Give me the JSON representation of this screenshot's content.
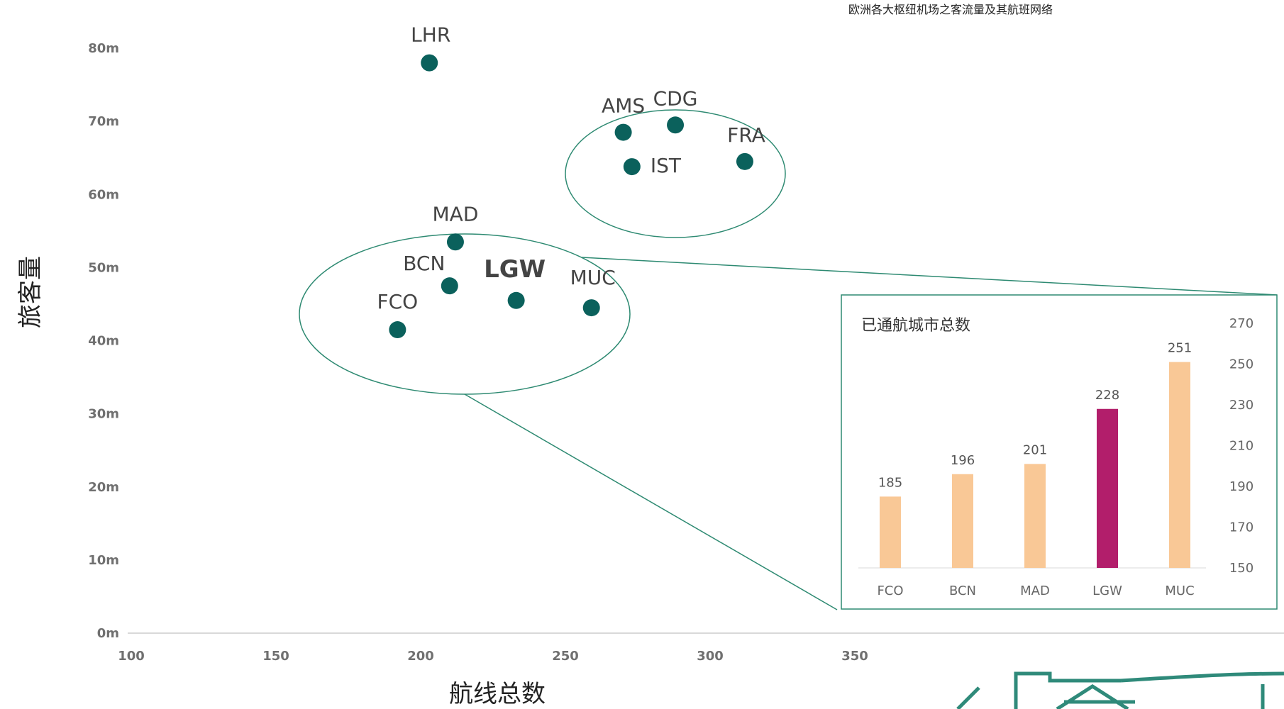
{
  "chart_data": [
    {
      "type": "scatter",
      "title": "欧洲各大枢纽机场之客流量及其航班网络",
      "xlabel": "航线总数",
      "ylabel": "旅客量",
      "xlim": [
        100,
        350
      ],
      "ylim": [
        0,
        80
      ],
      "x_ticks": [
        "100",
        "150",
        "200",
        "250",
        "300",
        "350"
      ],
      "y_ticks": [
        "0m",
        "10m",
        "20m",
        "30m",
        "40m",
        "50m",
        "60m",
        "70m",
        "80m"
      ],
      "point_color": "#0b615c",
      "points": [
        {
          "label": "LHR",
          "x": 203,
          "y": 78,
          "bold": false
        },
        {
          "label": "AMS",
          "x": 270,
          "y": 68.5,
          "bold": false
        },
        {
          "label": "CDG",
          "x": 288,
          "y": 69.5,
          "bold": false
        },
        {
          "label": "FRA",
          "x": 312,
          "y": 64.5,
          "bold": false
        },
        {
          "label": "IST",
          "x": 273,
          "y": 63.8,
          "bold": false
        },
        {
          "label": "MAD",
          "x": 212,
          "y": 53.5,
          "bold": false
        },
        {
          "label": "BCN",
          "x": 210,
          "y": 47.5,
          "bold": false
        },
        {
          "label": "LGW",
          "x": 233,
          "y": 45.5,
          "bold": true
        },
        {
          "label": "MUC",
          "x": 259,
          "y": 44.5,
          "bold": false
        },
        {
          "label": "FCO",
          "x": 192,
          "y": 41.5,
          "bold": false
        }
      ]
    },
    {
      "type": "bar",
      "title": "已通航城市总数",
      "categories": [
        "FCO",
        "BCN",
        "MAD",
        "LGW",
        "MUC"
      ],
      "values": [
        185,
        196,
        201,
        228,
        251
      ],
      "ylim": [
        150,
        270
      ],
      "y_ticks": [
        "150",
        "170",
        "190",
        "210",
        "230",
        "250",
        "270"
      ],
      "colors": [
        "#f9c896",
        "#f9c896",
        "#f9c896",
        "#b21e6b",
        "#f9c896"
      ],
      "axis_position": "right"
    }
  ]
}
